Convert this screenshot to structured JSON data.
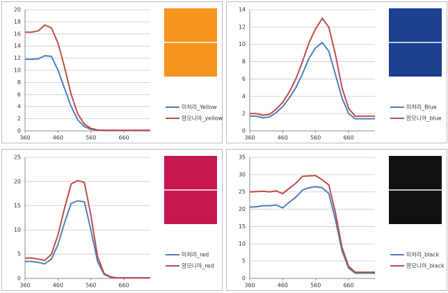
{
  "chart_data": [
    {
      "type": "line",
      "swatch_color": "#f7941d",
      "x": [
        360,
        380,
        400,
        420,
        440,
        460,
        480,
        500,
        520,
        540,
        560,
        580,
        600,
        620,
        640,
        660,
        680,
        700,
        720,
        740
      ],
      "xlim": [
        360,
        740
      ],
      "xticks": [
        360,
        460,
        560,
        660
      ],
      "ylim": [
        0,
        20
      ],
      "yticks": [
        0,
        2,
        4,
        6,
        8,
        10,
        12,
        14,
        16,
        18,
        20
      ],
      "grid": true,
      "series": [
        {
          "name": "미처리_Yellow",
          "color": "#4a7ebb",
          "values": [
            11.8,
            11.8,
            11.9,
            12.4,
            12.3,
            10,
            7,
            4,
            1.8,
            0.7,
            0.25,
            0.1,
            0.05,
            0.05,
            0.05,
            0.05,
            0.05,
            0.05,
            0.05,
            0.05
          ]
        },
        {
          "name": "암모니아_yellow",
          "color": "#be4b48",
          "values": [
            16.3,
            16.3,
            16.5,
            17.5,
            17,
            14.5,
            10.5,
            6,
            2.8,
            1.1,
            0.4,
            0.15,
            0.1,
            0.1,
            0.1,
            0.1,
            0.1,
            0.1,
            0.1,
            0.1
          ]
        }
      ]
    },
    {
      "type": "line",
      "swatch_color": "#1c3f8f",
      "x": [
        360,
        380,
        400,
        420,
        440,
        460,
        480,
        500,
        520,
        540,
        560,
        580,
        600,
        620,
        640,
        660,
        680,
        700,
        720,
        740
      ],
      "xlim": [
        360,
        740
      ],
      "xticks": [
        360,
        460,
        560,
        660
      ],
      "ylim": [
        0,
        14
      ],
      "yticks": [
        0,
        2,
        4,
        6,
        8,
        10,
        12,
        14
      ],
      "grid": true,
      "series": [
        {
          "name": "미처리_Blue",
          "color": "#4a7ebb",
          "values": [
            1.7,
            1.7,
            1.5,
            1.6,
            2.1,
            2.8,
            3.8,
            5.0,
            6.6,
            8.4,
            9.6,
            10.2,
            9.2,
            6.5,
            3.8,
            2.0,
            1.4,
            1.4,
            1.4,
            1.4
          ]
        },
        {
          "name": "암모니아_blue",
          "color": "#be4b48",
          "values": [
            2.0,
            2.0,
            1.8,
            1.9,
            2.5,
            3.3,
            4.5,
            6.0,
            8.0,
            10.2,
            11.8,
            13.0,
            12.0,
            8.8,
            5.0,
            2.6,
            1.7,
            1.7,
            1.7,
            1.7
          ]
        }
      ]
    },
    {
      "type": "line",
      "swatch_color": "#c8174f",
      "x": [
        360,
        380,
        400,
        420,
        440,
        460,
        480,
        500,
        520,
        540,
        560,
        580,
        600,
        620,
        640,
        660,
        680,
        700,
        720,
        740
      ],
      "xlim": [
        360,
        740
      ],
      "xticks": [
        360,
        460,
        560,
        660
      ],
      "ylim": [
        0,
        25
      ],
      "yticks": [
        0,
        5,
        10,
        15,
        20,
        25
      ],
      "grid": true,
      "series": [
        {
          "name": "미처리_red",
          "color": "#4a7ebb",
          "values": [
            3.5,
            3.5,
            3.3,
            3.0,
            4.0,
            7.0,
            11.5,
            15.5,
            16.0,
            15.8,
            10,
            3.5,
            0.8,
            0.2,
            0.1,
            0.1,
            0.1,
            0.1,
            0.1,
            0.1
          ]
        },
        {
          "name": "암모니아_red",
          "color": "#be4b48",
          "values": [
            4.2,
            4.2,
            4.0,
            3.7,
            5.0,
            9.0,
            14.5,
            19.5,
            20.2,
            19.8,
            13,
            4.5,
            1.0,
            0.3,
            0.1,
            0.1,
            0.1,
            0.1,
            0.1,
            0.1
          ]
        }
      ]
    },
    {
      "type": "line",
      "swatch_color": "#111111",
      "x": [
        360,
        380,
        400,
        420,
        440,
        460,
        480,
        500,
        520,
        540,
        560,
        580,
        600,
        620,
        640,
        660,
        680,
        700,
        720,
        740
      ],
      "xlim": [
        360,
        740
      ],
      "xticks": [
        360,
        460,
        560,
        660
      ],
      "ylim": [
        0,
        35
      ],
      "yticks": [
        0,
        5,
        10,
        15,
        20,
        25,
        30,
        35
      ],
      "grid": true,
      "series": [
        {
          "name": "미처리_black",
          "color": "#4a7ebb",
          "values": [
            20.6,
            20.7,
            21,
            21,
            21.2,
            20.4,
            22,
            23.5,
            25.5,
            26.2,
            26.5,
            26.2,
            24.5,
            17,
            8,
            3,
            1.5,
            1.5,
            1.5,
            1.5
          ]
        },
        {
          "name": "암모니아_black",
          "color": "#be4b48",
          "values": [
            25,
            25.1,
            25.2,
            25,
            25.3,
            24.5,
            26,
            27.5,
            29.5,
            29.6,
            29.7,
            28.5,
            27,
            19,
            9,
            3.5,
            1.8,
            1.8,
            1.8,
            1.8
          ]
        }
      ]
    }
  ]
}
